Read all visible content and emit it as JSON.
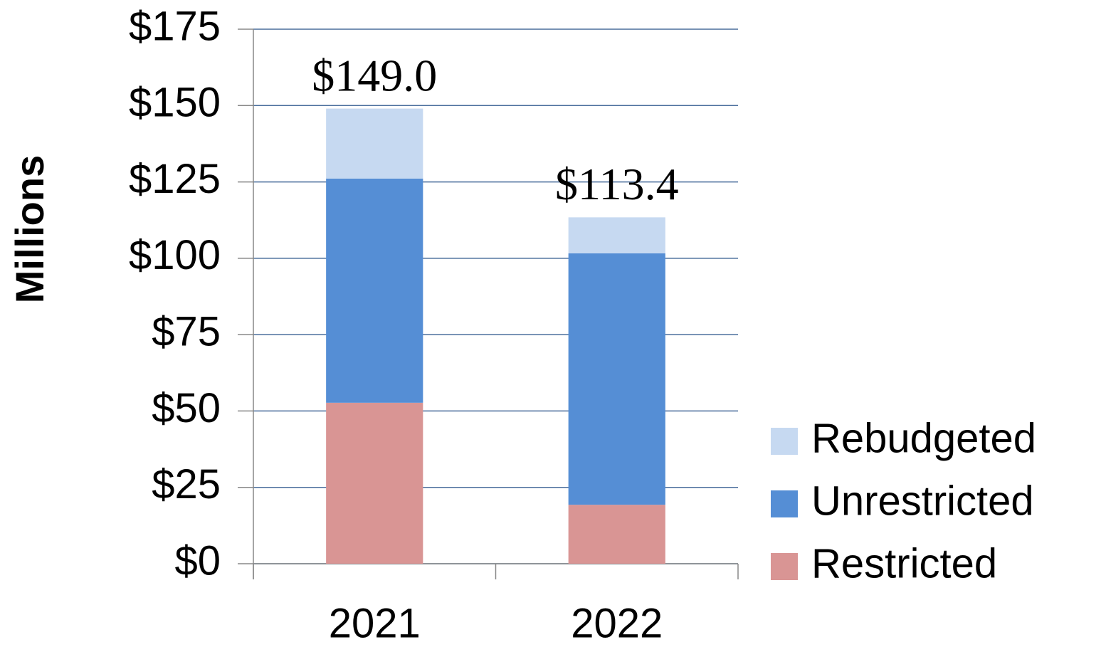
{
  "chart_data": {
    "type": "stacked_bar",
    "y_axis_label": "Millions",
    "categories": [
      "2021",
      "2022"
    ],
    "series": [
      {
        "name": "Restricted",
        "color": "#d99594",
        "values": [
          52.7,
          19.3
        ]
      },
      {
        "name": "Unrestricted",
        "color": "#558ed5",
        "values": [
          73.4,
          82.3
        ]
      },
      {
        "name": "Rebudgeted",
        "color": "#c6d9f1",
        "values": [
          22.9,
          11.8
        ]
      }
    ],
    "totals": [
      149.0,
      113.4
    ],
    "total_labels": [
      "$149.0",
      "$113.4"
    ],
    "ylim": [
      0,
      175
    ],
    "yticks": [
      {
        "value": 0,
        "label": "$0"
      },
      {
        "value": 25,
        "label": "$25"
      },
      {
        "value": 50,
        "label": "$50"
      },
      {
        "value": 75,
        "label": "$75"
      },
      {
        "value": 100,
        "label": "$100"
      },
      {
        "value": 125,
        "label": "$125"
      },
      {
        "value": 150,
        "label": "$150"
      },
      {
        "value": 175,
        "label": "$175"
      }
    ],
    "grid": true,
    "legend": "right"
  }
}
